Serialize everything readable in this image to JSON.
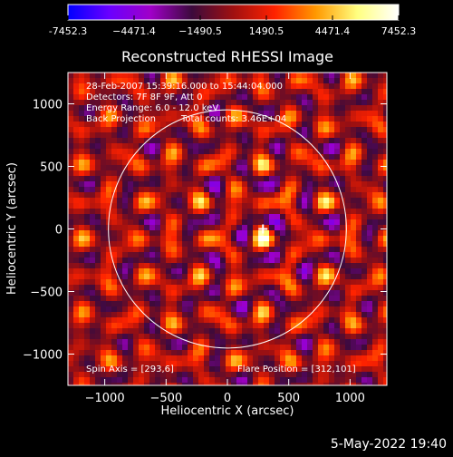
{
  "chart_data": {
    "type": "heatmap",
    "title": "Reconstructed RHESSI Image",
    "xlabel": "Heliocentric X (arcsec)",
    "ylabel": "Heliocentric Y (arcsec)",
    "xlim": [
      -1300,
      1300
    ],
    "ylim": [
      -1250,
      1250
    ],
    "x_ticks": [
      -1000,
      -500,
      0,
      500,
      1000
    ],
    "y_ticks": [
      -1000,
      -500,
      0,
      500,
      1000
    ],
    "colorbar": {
      "min": -7452.3,
      "max": 7452.3,
      "tick_values": [
        -7452.3,
        -4471.4,
        -1490.5,
        1490.5,
        4471.4,
        7452.3
      ],
      "tick_labels": [
        "-7452.3",
        "−4471.4",
        "−1490.5",
        "1490.5",
        "4471.4",
        "7452.3"
      ],
      "colors": [
        "#0000ff",
        "#6a00ff",
        "#a000c8",
        "#3c0a3c",
        "#a01010",
        "#ff2200",
        "#ff9900",
        "#ffff80",
        "#ffffff"
      ]
    },
    "annotations": [
      "28-Feb-2007 15:39:16.000 to 15:44:04.000",
      "Detectors: 7F 8F 9F, Att 0",
      "Energy Range: 6.0 - 12.0 keV",
      "Back Projection",
      "Total counts: 3.46E+04"
    ],
    "spin_axis": "Spin Axis = [293,6]",
    "flare_position": "Flare Position = [312,101]",
    "flare_marker_xy": [
      290,
      0
    ],
    "solar_disk_radius": 970
  },
  "footer": {
    "timestamp": "5-May-2022 19:40"
  }
}
